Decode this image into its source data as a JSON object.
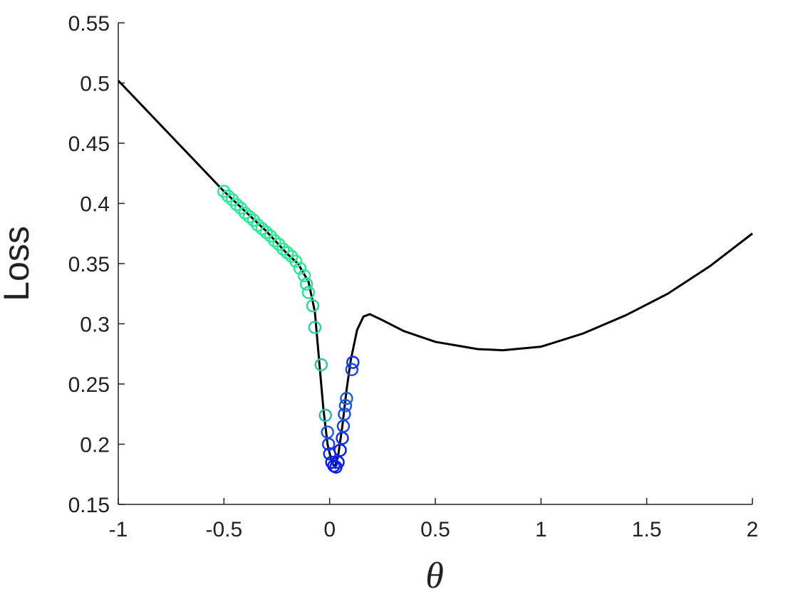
{
  "chart_data": {
    "type": "line",
    "xlabel": "θ",
    "ylabel": "Loss",
    "xlim": [
      -1,
      2
    ],
    "ylim": [
      0.15,
      0.55
    ],
    "xticks": [
      -1,
      -0.5,
      0,
      0.5,
      1,
      1.5,
      2
    ],
    "yticks": [
      0.15,
      0.2,
      0.25,
      0.3,
      0.35,
      0.4,
      0.45,
      0.5,
      0.55
    ],
    "series": [
      {
        "type": "line",
        "color": "#000000",
        "x": [
          -1,
          -0.5,
          -0.3,
          -0.2,
          -0.15,
          -0.1,
          -0.07,
          -0.05,
          -0.03,
          -0.01,
          0.01,
          0.025,
          0.04,
          0.06,
          0.08,
          0.1,
          0.13,
          0.16,
          0.19,
          0.25,
          0.35,
          0.5,
          0.7,
          0.82,
          1.0,
          1.2,
          1.4,
          1.6,
          1.8,
          2.0
        ],
        "values": [
          0.502,
          0.41,
          0.377,
          0.358,
          0.35,
          0.335,
          0.31,
          0.27,
          0.23,
          0.2,
          0.185,
          0.181,
          0.19,
          0.215,
          0.245,
          0.27,
          0.295,
          0.306,
          0.308,
          0.303,
          0.294,
          0.285,
          0.279,
          0.278,
          0.281,
          0.292,
          0.307,
          0.325,
          0.348,
          0.375
        ]
      },
      {
        "type": "scatter",
        "x": [
          -0.5,
          -0.48,
          -0.46,
          -0.44,
          -0.42,
          -0.4,
          -0.38,
          -0.36,
          -0.34,
          -0.32,
          -0.3,
          -0.28,
          -0.26,
          -0.24,
          -0.22,
          -0.2,
          -0.18,
          -0.16,
          -0.14,
          -0.12,
          -0.11,
          -0.1,
          -0.08,
          -0.07,
          -0.04,
          -0.02,
          -0.01,
          -0.005,
          0.0,
          0.01,
          0.02,
          0.03,
          0.04,
          0.05,
          0.06,
          0.065,
          0.07,
          0.075,
          0.08,
          0.105,
          0.11
        ],
        "values": [
          0.41,
          0.406,
          0.403,
          0.399,
          0.396,
          0.392,
          0.389,
          0.386,
          0.382,
          0.379,
          0.376,
          0.373,
          0.369,
          0.366,
          0.362,
          0.359,
          0.356,
          0.352,
          0.346,
          0.34,
          0.333,
          0.326,
          0.315,
          0.297,
          0.266,
          0.224,
          0.21,
          0.2,
          0.192,
          0.185,
          0.182,
          0.181,
          0.185,
          0.195,
          0.205,
          0.215,
          0.225,
          0.232,
          0.238,
          0.262,
          0.268
        ],
        "colors": [
          "#2ee89a",
          "#2ee89a",
          "#2ee89a",
          "#2ee89a",
          "#2ee89a",
          "#2ee89a",
          "#2ee89a",
          "#2ee89a",
          "#2ee89a",
          "#2ee89a",
          "#2ee89a",
          "#2ee89a",
          "#2ee89a",
          "#2ee89a",
          "#2ee89a",
          "#2ee89a",
          "#2ee89a",
          "#2ee89a",
          "#2ee89a",
          "#2ee89a",
          "#2fdc9e",
          "#2fdc9e",
          "#2fd4a0",
          "#2fd0a0",
          "#2cc8a8",
          "#2ab4b4",
          "#1e60d8",
          "#1840e0",
          "#1030e6",
          "#0a20ea",
          "#0a20ea",
          "#0a20ea",
          "#0a20ea",
          "#0a20ea",
          "#1230e6",
          "#1a48de",
          "#1c50dc",
          "#1e58da",
          "#2060d8",
          "#1a50dc",
          "#1030e6"
        ]
      }
    ]
  }
}
